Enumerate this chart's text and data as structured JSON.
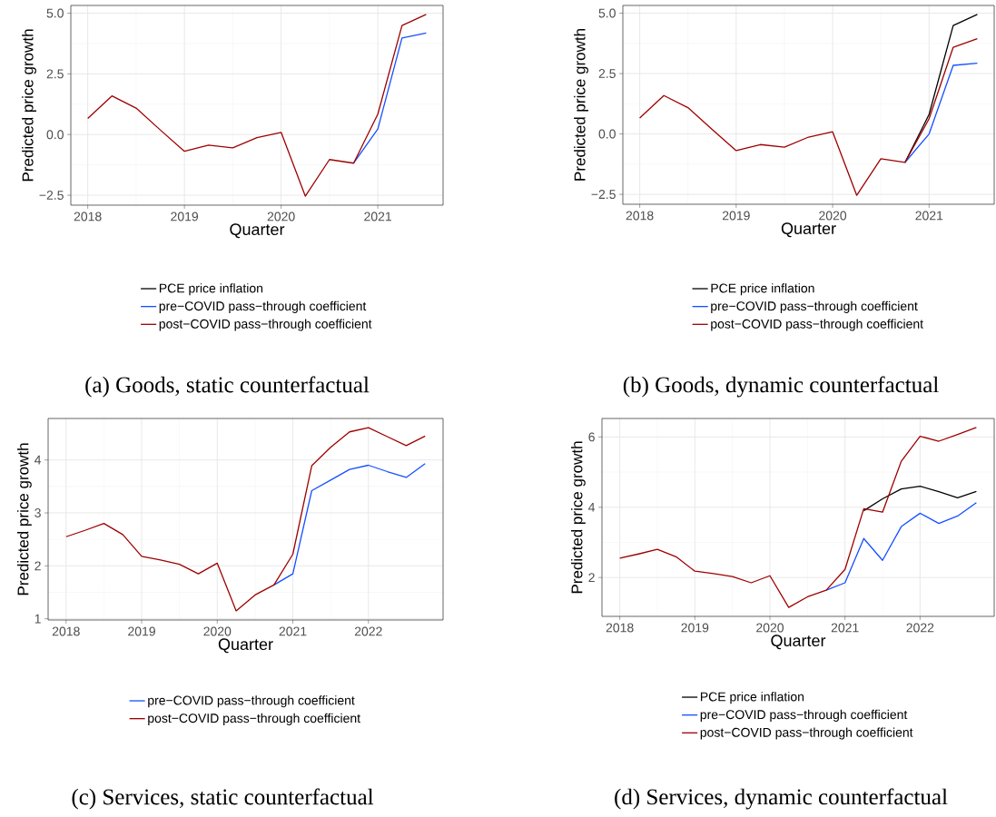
{
  "chart_data": [
    {
      "type": "line",
      "xlabel": "Quarter",
      "ylabel": "Predicted price growth",
      "annotations": [
        "(a) Goods, static counterfactual"
      ],
      "grid": true,
      "legend": "bottom",
      "x": [
        2018.0,
        2018.25,
        2018.5,
        2018.75,
        2019.0,
        2019.25,
        2019.5,
        2019.75,
        2020.0,
        2020.25,
        2020.5,
        2020.75,
        2021.0,
        2021.25,
        2021.5
      ],
      "xlim": [
        2017.825,
        2021.675
      ],
      "ylim": [
        -2.91,
        5.32
      ],
      "xticks": [
        2018,
        2019,
        2020,
        2021
      ],
      "yticks": [
        {
          "value": -2.5,
          "label": "−2.5"
        },
        {
          "value": 0,
          "label": "0.0"
        },
        {
          "value": 2.5,
          "label": "2.5"
        },
        {
          "value": 5,
          "label": "5.0"
        }
      ],
      "series": [
        {
          "name": "PCE price inflation",
          "color": "#000000",
          "values": [
            null,
            null,
            null,
            null,
            null,
            null,
            null,
            null,
            null,
            null,
            null,
            null,
            null,
            null,
            null
          ]
        },
        {
          "name": "pre−COVID pass−through coefficient",
          "color": "#1450ff",
          "values": [
            null,
            null,
            null,
            null,
            null,
            null,
            null,
            null,
            null,
            null,
            null,
            -1.18,
            0.23,
            3.98,
            4.18
          ]
        },
        {
          "name": "post−COVID pass−through coefficient",
          "color": "#9e0000",
          "values": [
            0.66,
            1.59,
            1.09,
            0.19,
            -0.69,
            -0.44,
            -0.55,
            -0.13,
            0.09,
            -2.54,
            -1.03,
            -1.18,
            0.84,
            4.49,
            4.95
          ]
        }
      ]
    },
    {
      "type": "line",
      "xlabel": "Quarter",
      "ylabel": "Predicted price growth",
      "annotations": [
        "(b) Goods, dynamic counterfactual"
      ],
      "grid": true,
      "legend": "bottom",
      "x": [
        2018.0,
        2018.25,
        2018.5,
        2018.75,
        2019.0,
        2019.25,
        2019.5,
        2019.75,
        2020.0,
        2020.25,
        2020.5,
        2020.75,
        2021.0,
        2021.25,
        2021.5
      ],
      "xlim": [
        2017.825,
        2021.675
      ],
      "ylim": [
        -2.91,
        5.32
      ],
      "xticks": [
        2018,
        2019,
        2020,
        2021
      ],
      "yticks": [
        {
          "value": -2.5,
          "label": "−2.5"
        },
        {
          "value": 0,
          "label": "0.0"
        },
        {
          "value": 2.5,
          "label": "2.5"
        },
        {
          "value": 5,
          "label": "5.0"
        }
      ],
      "series": [
        {
          "name": "PCE price inflation",
          "color": "#000000",
          "values": [
            null,
            null,
            null,
            null,
            null,
            null,
            null,
            null,
            null,
            null,
            null,
            -1.18,
            0.81,
            4.49,
            4.95
          ]
        },
        {
          "name": "pre−COVID pass−through coefficient",
          "color": "#1450ff",
          "values": [
            null,
            null,
            null,
            null,
            null,
            null,
            null,
            null,
            null,
            null,
            null,
            -1.18,
            0.0,
            2.84,
            2.93
          ]
        },
        {
          "name": "post−COVID pass−through coefficient",
          "color": "#9e0000",
          "values": [
            0.66,
            1.59,
            1.09,
            0.19,
            -0.69,
            -0.44,
            -0.55,
            -0.13,
            0.09,
            -2.54,
            -1.03,
            -1.18,
            0.63,
            3.59,
            3.94
          ]
        }
      ]
    },
    {
      "type": "line",
      "xlabel": "Quarter",
      "ylabel": "Predicted price growth",
      "annotations": [
        "(c) Services, static counterfactual"
      ],
      "grid": true,
      "legend": "bottom",
      "x": [
        2018.0,
        2018.25,
        2018.5,
        2018.75,
        2019.0,
        2019.25,
        2019.5,
        2019.75,
        2020.0,
        2020.25,
        2020.5,
        2020.75,
        2021.0,
        2021.25,
        2021.5,
        2021.75,
        2022.0,
        2022.25,
        2022.5,
        2022.75
      ],
      "xlim": [
        2017.7625,
        2022.9875
      ],
      "ylim": [
        0.977,
        4.783
      ],
      "xticks": [
        2018,
        2019,
        2020,
        2021,
        2022
      ],
      "yticks": [
        1,
        2,
        3,
        4
      ],
      "series": [
        {
          "name": "pre−COVID pass−through coefficient",
          "color": "#1450ff",
          "values": [
            null,
            null,
            null,
            null,
            null,
            null,
            null,
            null,
            null,
            null,
            null,
            1.64,
            1.85,
            3.42,
            3.62,
            3.82,
            3.9,
            3.78,
            3.67,
            3.93
          ]
        },
        {
          "name": "post−COVID pass−through coefficient",
          "color": "#9e0000",
          "values": [
            2.55,
            2.67,
            2.8,
            2.59,
            2.18,
            2.11,
            2.03,
            1.85,
            2.05,
            1.15,
            1.45,
            1.64,
            2.22,
            3.89,
            4.24,
            4.53,
            4.61,
            4.44,
            4.27,
            4.45
          ]
        }
      ]
    },
    {
      "type": "line",
      "xlabel": "Quarter",
      "ylabel": "Predicted price growth",
      "annotations": [
        "(d) Services, dynamic counterfactual"
      ],
      "grid": true,
      "legend": "bottom",
      "x": [
        2018.0,
        2018.25,
        2018.5,
        2018.75,
        2019.0,
        2019.25,
        2019.5,
        2019.75,
        2020.0,
        2020.25,
        2020.5,
        2020.75,
        2021.0,
        2021.25,
        2021.5,
        2021.75,
        2022.0,
        2022.25,
        2022.5,
        2022.75
      ],
      "xlim": [
        2017.7625,
        2022.9875
      ],
      "ylim": [
        0.894,
        6.526
      ],
      "xticks": [
        2018,
        2019,
        2020,
        2021,
        2022
      ],
      "yticks": [
        2,
        4,
        6
      ],
      "series": [
        {
          "name": "PCE price inflation",
          "color": "#000000",
          "values": [
            null,
            null,
            null,
            null,
            null,
            null,
            null,
            null,
            null,
            null,
            null,
            null,
            null,
            3.9,
            4.24,
            4.52,
            4.6,
            4.44,
            4.27,
            4.45
          ]
        },
        {
          "name": "pre−COVID pass−through coefficient",
          "color": "#1450ff",
          "values": [
            null,
            null,
            null,
            null,
            null,
            null,
            null,
            null,
            null,
            null,
            null,
            1.64,
            1.85,
            3.11,
            2.49,
            3.45,
            3.83,
            3.54,
            3.75,
            4.13
          ]
        },
        {
          "name": "post−COVID pass−through coefficient",
          "color": "#9e0000",
          "values": [
            2.55,
            2.67,
            2.8,
            2.59,
            2.18,
            2.11,
            2.03,
            1.85,
            2.05,
            1.15,
            1.45,
            1.64,
            2.23,
            3.96,
            3.86,
            5.31,
            6.02,
            5.88,
            6.07,
            6.27
          ]
        }
      ]
    }
  ]
}
